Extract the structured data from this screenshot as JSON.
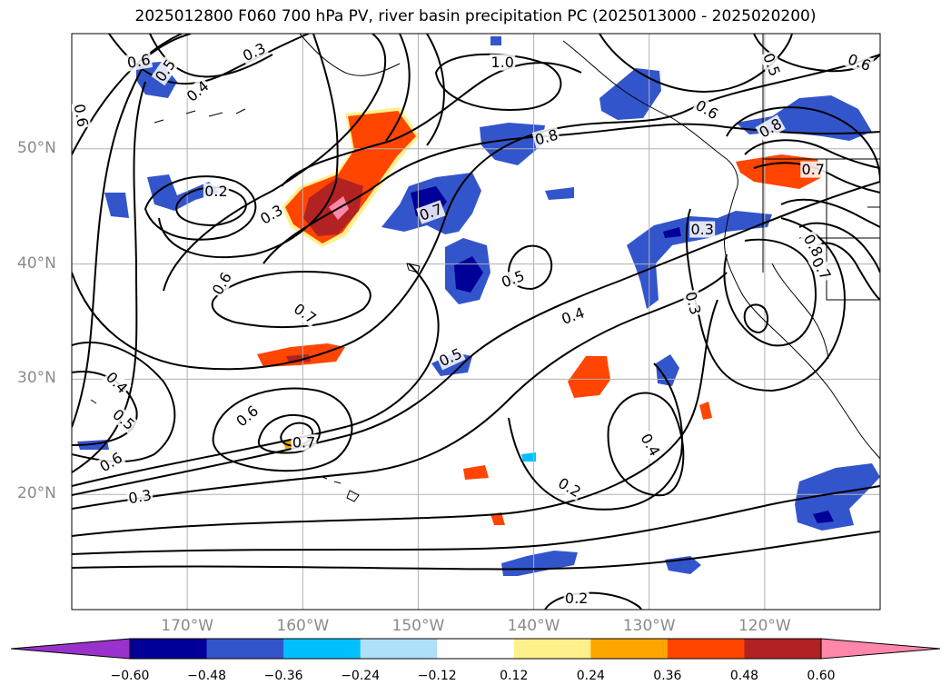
{
  "title": "2025012800 F060 700 hPa PV, river basin precipitation PC (2025013000 - 2025020200)",
  "map": {
    "lat_labels": [
      "50°N",
      "40°N",
      "30°N",
      "20°N"
    ],
    "lon_labels": [
      "170°W",
      "160°W",
      "150°W",
      "140°W",
      "130°W",
      "120°W"
    ],
    "grid_lats": [
      50,
      40,
      30,
      20
    ],
    "grid_lons": [
      -170,
      -160,
      -150,
      -140,
      -130,
      -120
    ],
    "extent": {
      "lon_min": -180,
      "lon_max": -110,
      "lat_min": 10,
      "lat_max": 60
    }
  },
  "contour_labels": [
    {
      "text": "0.6",
      "lon": -174.2,
      "lat": 57.6,
      "rot": -10
    },
    {
      "text": "0.5",
      "lon": -171.9,
      "lat": 56.8,
      "rot": -55
    },
    {
      "text": "0.4",
      "lon": -169.1,
      "lat": 55.0,
      "rot": -40
    },
    {
      "text": "0.3",
      "lon": -164.2,
      "lat": 58.4,
      "rot": -25
    },
    {
      "text": "1.0",
      "lon": -142.7,
      "lat": 57.5,
      "rot": 0
    },
    {
      "text": "0.5",
      "lon": -119.4,
      "lat": 57.3,
      "rot": 70
    },
    {
      "text": "0.6",
      "lon": -111.8,
      "lat": 57.5,
      "rot": 20
    },
    {
      "text": "0.6",
      "lon": -179.2,
      "lat": 52.9,
      "rot": 80
    },
    {
      "text": "0.6",
      "lon": -125.0,
      "lat": 53.4,
      "rot": 30
    },
    {
      "text": "0.8",
      "lon": -138.9,
      "lat": 51.0,
      "rot": -15
    },
    {
      "text": "0.8",
      "lon": -119.5,
      "lat": 51.8,
      "rot": -30
    },
    {
      "text": "0.2",
      "lon": -167.5,
      "lat": 46.3,
      "rot": 0
    },
    {
      "text": "0.3",
      "lon": -162.7,
      "lat": 44.3,
      "rot": -30
    },
    {
      "text": "0.7",
      "lon": -148.9,
      "lat": 44.5,
      "rot": -20
    },
    {
      "text": "0.7",
      "lon": -115.8,
      "lat": 48.2,
      "rot": 0
    },
    {
      "text": "0.3",
      "lon": -125.4,
      "lat": 43.0,
      "rot": 0
    },
    {
      "text": "0.8",
      "lon": -115.8,
      "lat": 41.6,
      "rot": 60
    },
    {
      "text": "0.7",
      "lon": -115.1,
      "lat": 39.6,
      "rot": 60
    },
    {
      "text": "0.6",
      "lon": -167.0,
      "lat": 38.3,
      "rot": -60
    },
    {
      "text": "0.5",
      "lon": -141.8,
      "lat": 38.7,
      "rot": -20
    },
    {
      "text": "0.3",
      "lon": -126.2,
      "lat": 36.6,
      "rot": 75
    },
    {
      "text": "0.7",
      "lon": -159.8,
      "lat": 35.7,
      "rot": 35
    },
    {
      "text": "0.4",
      "lon": -136.6,
      "lat": 35.5,
      "rot": -20
    },
    {
      "text": "0.5",
      "lon": -147.2,
      "lat": 31.9,
      "rot": -25
    },
    {
      "text": "0.4",
      "lon": -176.1,
      "lat": 29.7,
      "rot": 45
    },
    {
      "text": "0.5",
      "lon": -175.5,
      "lat": 26.5,
      "rot": 40
    },
    {
      "text": "0.6",
      "lon": -164.8,
      "lat": 26.8,
      "rot": -40
    },
    {
      "text": "0.7",
      "lon": -159.9,
      "lat": 24.5,
      "rot": 0
    },
    {
      "text": "0.4",
      "lon": -129.9,
      "lat": 24.3,
      "rot": 60
    },
    {
      "text": "0.6",
      "lon": -176.6,
      "lat": 22.8,
      "rot": -30
    },
    {
      "text": "0.3",
      "lon": -174.1,
      "lat": 19.8,
      "rot": -10
    },
    {
      "text": "0.2",
      "lon": -136.9,
      "lat": 20.6,
      "rot": 30
    },
    {
      "text": "0.2",
      "lon": -136.3,
      "lat": 11.0,
      "rot": 0
    }
  ],
  "colorbar": {
    "levels": [
      "−0.60",
      "−0.48",
      "−0.36",
      "−0.24",
      "−0.12",
      "0.12",
      "0.24",
      "0.36",
      "0.48",
      "0.60"
    ],
    "colors": [
      "#9932cc",
      "#000099",
      "#3355cc",
      "#00bfff",
      "#aee0f8",
      "#ffffff",
      "#fff08c",
      "#ffa500",
      "#ff4500",
      "#b22222",
      "#ff88aa"
    ]
  }
}
